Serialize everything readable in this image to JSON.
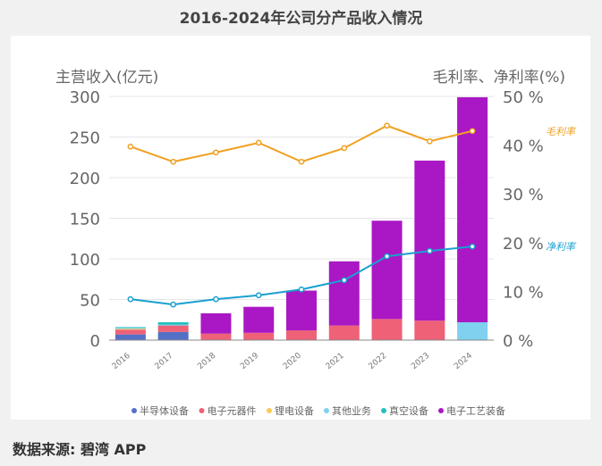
{
  "chart_data": {
    "type": "bar",
    "title": "2016-2024年公司分产品收入情况",
    "ylabel": "主营收入(亿元)",
    "y2label": "毛利率、净利率(%)",
    "ylim": [
      0,
      300
    ],
    "y2lim": [
      0,
      50
    ],
    "yticks": [
      0,
      50,
      100,
      150,
      200,
      250,
      300
    ],
    "y2ticks": [
      "0 %",
      "10 %",
      "20 %",
      "30 %",
      "40 %",
      "50 %"
    ],
    "categories": [
      "2016",
      "2017",
      "2018",
      "2019",
      "2020",
      "2021",
      "2022",
      "2023",
      "2024"
    ],
    "stacked": true,
    "grid": true,
    "legend": "bottom",
    "series": [
      {
        "name": "半导体设备",
        "color": "#5470c6",
        "values": [
          7,
          10,
          0,
          0,
          0,
          0,
          0,
          0,
          0
        ]
      },
      {
        "name": "电子元器件",
        "color": "#ee6177",
        "values": [
          6,
          8,
          8,
          9,
          12,
          18,
          26,
          24,
          0
        ]
      },
      {
        "name": "锂电设备",
        "color": "#fac858",
        "values": [
          1,
          0,
          0,
          0,
          0,
          0,
          0,
          0,
          0
        ]
      },
      {
        "name": "其他业务",
        "color": "#80d0f0",
        "values": [
          1,
          1,
          0,
          0,
          0,
          0,
          0,
          0,
          22
        ]
      },
      {
        "name": "真空设备",
        "color": "#20c0c0",
        "values": [
          1,
          3,
          0,
          0,
          0,
          0,
          0,
          0,
          0
        ]
      },
      {
        "name": "电子工艺装备",
        "color": "#a918c4",
        "values": [
          0,
          0,
          25,
          32,
          49,
          79,
          121,
          197,
          277
        ]
      }
    ],
    "lines": [
      {
        "name": "毛利率",
        "color": "#f0a020",
        "values": [
          39.7,
          36.6,
          38.5,
          40.5,
          36.6,
          39.4,
          44.0,
          40.8,
          42.9
        ]
      },
      {
        "name": "净利率",
        "color": "#1aa0d0",
        "values": [
          8.4,
          7.3,
          8.4,
          9.2,
          10.4,
          12.3,
          17.2,
          18.3,
          19.2
        ]
      }
    ]
  },
  "footer": "数据来源: 碧湾 APP"
}
